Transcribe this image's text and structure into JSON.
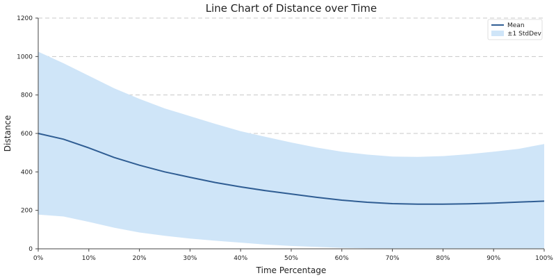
{
  "chart_data": {
    "type": "line",
    "title": "Line Chart of Distance over Time",
    "xlabel": "Time Percentage",
    "ylabel": "Distance",
    "xlim": [
      0,
      100
    ],
    "ylim": [
      0,
      1200
    ],
    "x_ticks": [
      "0%",
      "10%",
      "20%",
      "30%",
      "40%",
      "50%",
      "60%",
      "70%",
      "80%",
      "90%",
      "100%"
    ],
    "y_ticks": [
      "0",
      "200",
      "400",
      "600",
      "800",
      "1000",
      "1200"
    ],
    "x_tick_values": [
      0,
      10,
      20,
      30,
      40,
      50,
      60,
      70,
      80,
      90,
      100
    ],
    "y_tick_values": [
      0,
      200,
      400,
      600,
      800,
      1000,
      1200
    ],
    "grid": "horizontal dashed",
    "legend_position": "top-right",
    "x": [
      0,
      5,
      10,
      15,
      20,
      25,
      30,
      35,
      40,
      45,
      50,
      55,
      60,
      65,
      70,
      75,
      80,
      85,
      90,
      95,
      100
    ],
    "series": [
      {
        "name": "Mean",
        "color": "#2f5d93",
        "values": [
          600,
          570,
          525,
          475,
          435,
          400,
          372,
          345,
          322,
          302,
          285,
          268,
          253,
          242,
          235,
          232,
          232,
          234,
          238,
          243,
          248
        ]
      },
      {
        "name": "±1 StdDev",
        "color": "#cfe5f8",
        "upper": [
          1025,
          965,
          900,
          835,
          780,
          730,
          690,
          650,
          612,
          582,
          553,
          527,
          505,
          490,
          480,
          478,
          482,
          492,
          505,
          520,
          545
        ],
        "lower": [
          178,
          168,
          140,
          110,
          85,
          68,
          53,
          42,
          32,
          22,
          15,
          10,
          5,
          3,
          2,
          2,
          2,
          2,
          2,
          2,
          2
        ]
      }
    ]
  }
}
